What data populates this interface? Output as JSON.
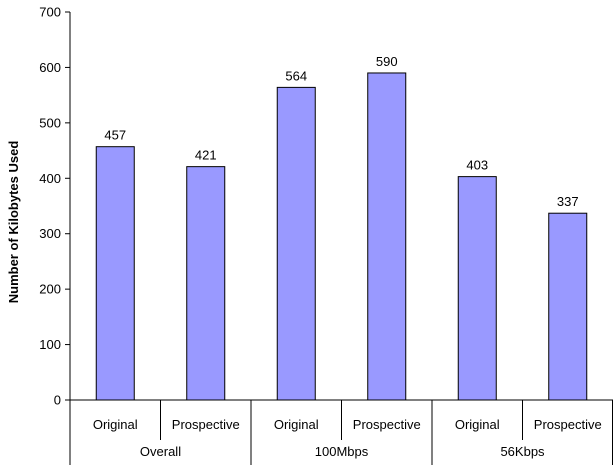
{
  "chart_data": {
    "type": "bar",
    "title": "",
    "xlabel": "",
    "ylabel": "Number of Kilobytes Used",
    "ylim": [
      0,
      700
    ],
    "yticks": [
      0,
      100,
      200,
      300,
      400,
      500,
      600,
      700
    ],
    "grid": false,
    "legend": "none",
    "bar_color": "#9999ff",
    "bar_edge_color": "#000000",
    "groups": [
      {
        "label": "Overall",
        "bars": [
          {
            "label": "Original",
            "value": 457
          },
          {
            "label": "Prospective",
            "value": 421
          }
        ]
      },
      {
        "label": "100Mbps",
        "bars": [
          {
            "label": "Original",
            "value": 564
          },
          {
            "label": "Prospective",
            "value": 590
          }
        ]
      },
      {
        "label": "56Kbps",
        "bars": [
          {
            "label": "Original",
            "value": 403
          },
          {
            "label": "Prospective",
            "value": 337
          }
        ]
      }
    ]
  }
}
